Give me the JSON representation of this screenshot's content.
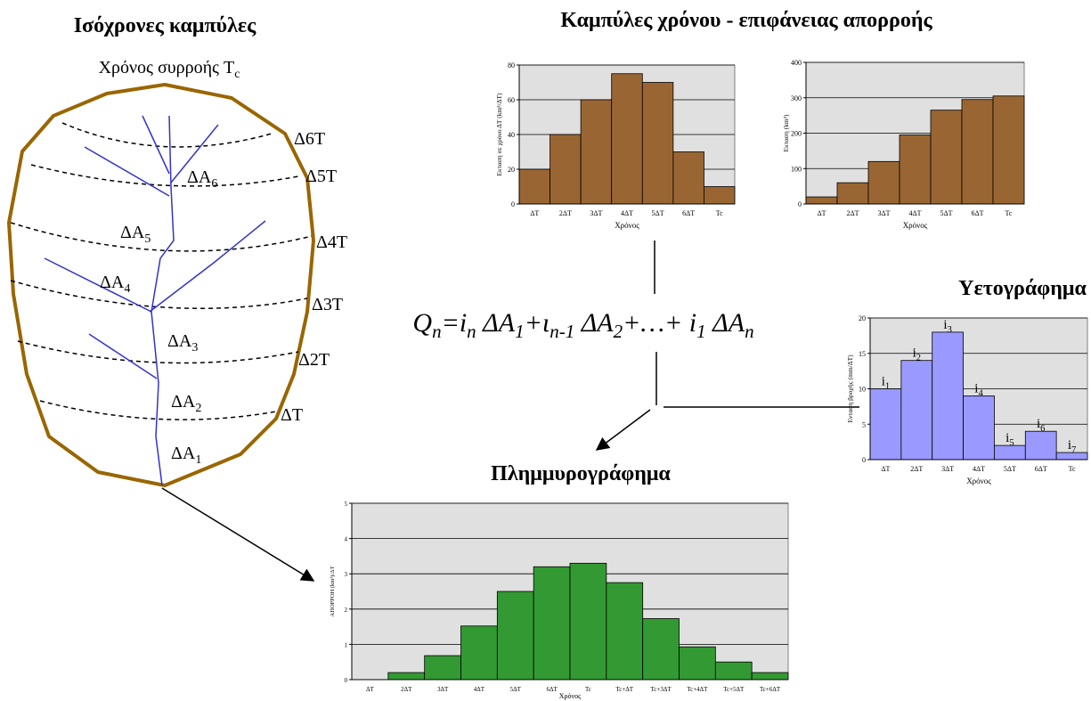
{
  "title": "Καμπύλες χρόνου - επιφάνειας απορροής",
  "watershed": {
    "title": "Ισόχρονες καμπύλες",
    "subtitle": {
      "text": "Χρόνος συρροής T",
      "sub": "c"
    },
    "isochrones": [
      "Δ6T",
      "Δ5T",
      "Δ4T",
      "Δ3T",
      "Δ2T",
      "ΔT"
    ],
    "areas": [
      {
        "text": "ΔA",
        "sub": "6"
      },
      {
        "text": "ΔA",
        "sub": "5"
      },
      {
        "text": "ΔA",
        "sub": "4"
      },
      {
        "text": "ΔA",
        "sub": "3"
      },
      {
        "text": "ΔA",
        "sub": "2"
      },
      {
        "text": "ΔA",
        "sub": "1"
      }
    ]
  },
  "equation": [
    {
      "text": "Q",
      "sub": "n"
    },
    {
      "text": "=i",
      "sub": "n"
    },
    {
      "text": " ΔA",
      "sub": "1"
    },
    {
      "text": "+ι",
      "sub": "n-1"
    },
    {
      "text": " ΔA",
      "sub": "2"
    },
    {
      "text": "+…+ i",
      "sub": "1"
    },
    {
      "text": " ΔA",
      "sub": "n"
    }
  ],
  "chart_data": [
    {
      "type": "bar",
      "x_label": "Χρόνος",
      "y_label": "Εκταση σε χρόνο ΔT (km²/ΔT)",
      "categories": [
        "ΔT",
        "2ΔT",
        "3ΔT",
        "4ΔT",
        "5ΔT",
        "6ΔT",
        "Tc"
      ],
      "values": [
        20,
        40,
        60,
        75,
        70,
        30,
        10
      ],
      "color": "#996633",
      "ylim": [
        0,
        80
      ],
      "yticks": [
        0,
        20,
        40,
        60,
        80
      ],
      "grid": true
    },
    {
      "type": "bar",
      "x_label": "Χρόνος",
      "y_label": "Εκταση (km²)",
      "categories": [
        "ΔT",
        "2ΔT",
        "3ΔT",
        "4ΔT",
        "5ΔT",
        "6ΔT",
        "Tc"
      ],
      "values": [
        20,
        60,
        120,
        195,
        265,
        295,
        305
      ],
      "color": "#996633",
      "ylim": [
        0,
        400
      ],
      "yticks": [
        0,
        100,
        200,
        300,
        400
      ],
      "grid": true
    },
    {
      "type": "bar",
      "title": "Υετογράφημα",
      "x_label": "Χρόνος",
      "y_label": "Ενταση βροχής (mm/ΔT)",
      "categories": [
        "ΔT",
        "2ΔT",
        "3ΔT",
        "4ΔT",
        "5ΔT",
        "6ΔT",
        "Tc"
      ],
      "values": [
        10,
        14,
        18,
        9,
        2,
        4,
        1
      ],
      "color": "#9999ff",
      "annotations": [
        {
          "text": "i",
          "sub": "1"
        },
        {
          "text": "i",
          "sub": "2"
        },
        {
          "text": "i",
          "sub": "3"
        },
        {
          "text": "i",
          "sub": "4"
        },
        {
          "text": "i",
          "sub": "5"
        },
        {
          "text": "i",
          "sub": "6"
        },
        {
          "text": "i",
          "sub": "7"
        }
      ],
      "ylim": [
        0,
        20
      ],
      "yticks": [
        0,
        5,
        10,
        15,
        20
      ],
      "grid": true
    },
    {
      "type": "bar",
      "title": "Πλημμυρογράφημα",
      "x_label": "Χρόνος",
      "y_label": "ΑΠΟΡΡΟΗ (km³)/ΔT",
      "categories": [
        "ΔT",
        "2ΔT",
        "3ΔT",
        "4ΔT",
        "5ΔT",
        "6ΔT",
        "Tc",
        "Tc+ΔT",
        "Tc+3ΔT",
        "Tc+4ΔT",
        "Tc+5ΔT",
        "Tc+6ΔT"
      ],
      "values": [
        0,
        0.2,
        0.68,
        1.52,
        2.5,
        3.2,
        3.3,
        2.75,
        1.73,
        0.93,
        0.5,
        0.2
      ],
      "color": "#339933",
      "ylim": [
        0,
        5
      ],
      "yticks": [
        0,
        1,
        2,
        3,
        4,
        5
      ],
      "grid": true
    }
  ]
}
